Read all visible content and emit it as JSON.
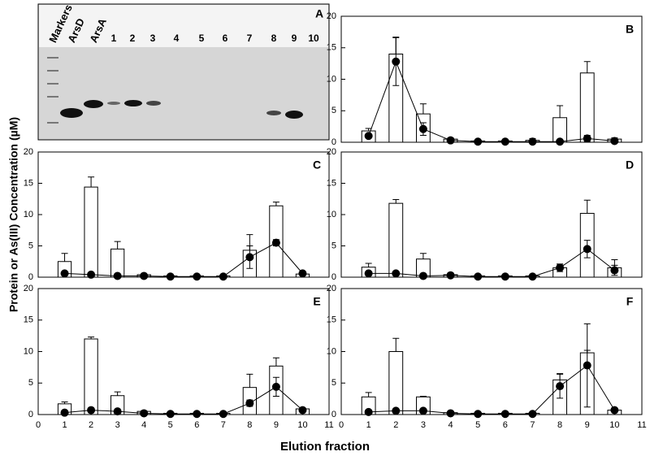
{
  "axis_titles": {
    "x": "Elution fraction",
    "y": "Protein or As(III) Concentration  (µM)"
  },
  "gel": {
    "label": "A",
    "lanes": [
      "Markers",
      "ArsD",
      "ArsA",
      "1",
      "2",
      "3",
      "4",
      "5",
      "6",
      "7",
      "8",
      "9",
      "10"
    ]
  },
  "chart_data": [
    {
      "type": "bar_line",
      "panel": "B",
      "x": [
        1,
        2,
        3,
        4,
        5,
        6,
        7,
        8,
        9,
        10
      ],
      "xlim": [
        0,
        11
      ],
      "xticks": [
        0,
        1,
        2,
        3,
        4,
        5,
        6,
        7,
        8,
        9,
        10,
        11
      ],
      "xtick_labels": false,
      "ylim": [
        0,
        20
      ],
      "yticks": [
        0,
        5,
        10,
        15,
        20
      ],
      "series": [
        {
          "type": "bar",
          "color": "#ffffff",
          "values": [
            1.8,
            14,
            4.5,
            0.5,
            0.2,
            0.2,
            0.3,
            3.9,
            11,
            0.5
          ],
          "errors": [
            0.4,
            2.7,
            1.6,
            0.2,
            0.1,
            0.1,
            0.3,
            1.9,
            1.8,
            0.2
          ]
        },
        {
          "type": "line",
          "color": "#000000",
          "values": [
            1.0,
            12.8,
            2.1,
            0.3,
            0.1,
            0.1,
            0.1,
            0.1,
            0.6,
            0.2
          ],
          "errors": [
            0.2,
            3.8,
            1.0,
            0.1,
            0.1,
            0.1,
            0.1,
            0.1,
            0.5,
            0.1
          ]
        }
      ]
    },
    {
      "type": "bar_line",
      "panel": "C",
      "x": [
        1,
        2,
        3,
        4,
        5,
        6,
        7,
        8,
        9,
        10
      ],
      "xlim": [
        0,
        11
      ],
      "xticks": [
        0,
        1,
        2,
        3,
        4,
        5,
        6,
        7,
        8,
        9,
        10,
        11
      ],
      "xtick_labels": false,
      "ylim": [
        0,
        20
      ],
      "yticks": [
        0,
        5,
        10,
        15,
        20
      ],
      "series": [
        {
          "type": "bar",
          "color": "#ffffff",
          "values": [
            2.5,
            14.4,
            4.5,
            0.4,
            0.2,
            0.2,
            0.2,
            4.3,
            11.4,
            0.5
          ],
          "errors": [
            1.3,
            1.6,
            1.2,
            0.1,
            0.1,
            0.1,
            0.1,
            2.5,
            0.6,
            0.1
          ]
        },
        {
          "type": "line",
          "color": "#000000",
          "values": [
            0.6,
            0.4,
            0.2,
            0.2,
            0.1,
            0.1,
            0.1,
            3.2,
            5.5,
            0.6
          ],
          "errors": [
            0.1,
            0.1,
            0.1,
            0.1,
            0.1,
            0.1,
            0.1,
            1.8,
            0.5,
            0.1
          ]
        }
      ]
    },
    {
      "type": "bar_line",
      "panel": "D",
      "x": [
        1,
        2,
        3,
        4,
        5,
        6,
        7,
        8,
        9,
        10
      ],
      "xlim": [
        0,
        11
      ],
      "xticks": [
        0,
        1,
        2,
        3,
        4,
        5,
        6,
        7,
        8,
        9,
        10,
        11
      ],
      "xtick_labels": false,
      "ylim": [
        0,
        20
      ],
      "yticks": [
        0,
        5,
        10,
        15,
        20
      ],
      "series": [
        {
          "type": "bar",
          "color": "#ffffff",
          "values": [
            1.6,
            11.8,
            2.9,
            0.4,
            0.2,
            0.2,
            0.2,
            1.5,
            10.2,
            1.5
          ],
          "errors": [
            0.6,
            0.6,
            0.9,
            0.1,
            0.1,
            0.1,
            0.1,
            0.6,
            2.1,
            1.3
          ]
        },
        {
          "type": "line",
          "color": "#000000",
          "values": [
            0.6,
            0.6,
            0.2,
            0.3,
            0.1,
            0.1,
            0.1,
            1.5,
            4.5,
            1.1
          ],
          "errors": [
            0.1,
            0.1,
            0.1,
            0.1,
            0.1,
            0.1,
            0.1,
            0.6,
            1.4,
            0.8
          ]
        }
      ]
    },
    {
      "type": "bar_line",
      "panel": "E",
      "x": [
        1,
        2,
        3,
        4,
        5,
        6,
        7,
        8,
        9,
        10
      ],
      "xlim": [
        0,
        11
      ],
      "xticks": [
        0,
        1,
        2,
        3,
        4,
        5,
        6,
        7,
        8,
        9,
        10,
        11
      ],
      "xtick_labels": true,
      "ylim": [
        0,
        20
      ],
      "yticks": [
        0,
        5,
        10,
        15,
        20
      ],
      "series": [
        {
          "type": "bar",
          "color": "#ffffff",
          "values": [
            1.7,
            12,
            3,
            0.5,
            0.2,
            0.2,
            0.2,
            4.3,
            7.7,
            0.9
          ],
          "errors": [
            0.3,
            0.3,
            0.6,
            0.1,
            0.1,
            0.1,
            0.1,
            2.1,
            1.3,
            0.1
          ]
        },
        {
          "type": "line",
          "color": "#000000",
          "values": [
            0.3,
            0.7,
            0.5,
            0.2,
            0.1,
            0.1,
            0.1,
            1.8,
            4.4,
            0.7
          ],
          "errors": [
            0.1,
            0.1,
            0.1,
            0.1,
            0.1,
            0.1,
            0.1,
            0.5,
            1.5,
            0.1
          ]
        }
      ]
    },
    {
      "type": "bar_line",
      "panel": "F",
      "x": [
        1,
        2,
        3,
        4,
        5,
        6,
        7,
        8,
        9,
        10
      ],
      "xlim": [
        0,
        11
      ],
      "xticks": [
        0,
        1,
        2,
        3,
        4,
        5,
        6,
        7,
        8,
        9,
        10,
        11
      ],
      "xtick_labels": true,
      "ylim": [
        0,
        20
      ],
      "yticks": [
        0,
        5,
        10,
        15,
        20
      ],
      "series": [
        {
          "type": "bar",
          "color": "#ffffff",
          "values": [
            2.8,
            10,
            2.8,
            0.3,
            0.2,
            0.2,
            0.2,
            5.5,
            9.8,
            0.7
          ],
          "errors": [
            0.7,
            2.1,
            0.1,
            0.1,
            0.1,
            0.1,
            0.1,
            1.0,
            0.4,
            0.1
          ]
        },
        {
          "type": "line",
          "color": "#000000",
          "values": [
            0.4,
            0.6,
            0.6,
            0.2,
            0.1,
            0.1,
            0.1,
            4.5,
            7.8,
            0.7
          ],
          "errors": [
            0.1,
            0.1,
            0.1,
            0.1,
            0.1,
            0.1,
            0.1,
            1.9,
            6.6,
            0.1
          ]
        }
      ]
    }
  ]
}
